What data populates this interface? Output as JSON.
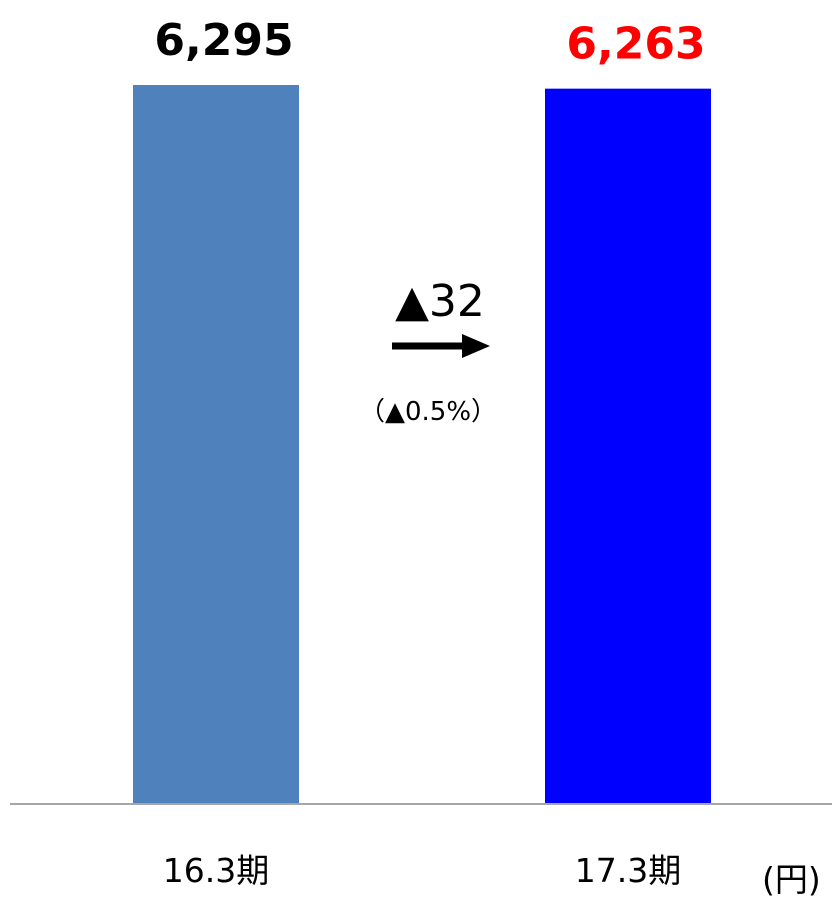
{
  "chart_data": {
    "type": "bar",
    "categories": [
      "16.3期",
      "17.3期"
    ],
    "values": [
      6295,
      6263
    ],
    "value_labels": [
      "6,295",
      "6,263"
    ],
    "ylim": [
      0,
      6295
    ],
    "grid": false,
    "unit": "(円)",
    "bar_colors": [
      "#4F81BD",
      "#0000FF"
    ],
    "value_label_colors": [
      "#000000",
      "#FF0000"
    ],
    "annotation": {
      "change": "▲32",
      "change_pct": "（▲0.5%）"
    }
  }
}
